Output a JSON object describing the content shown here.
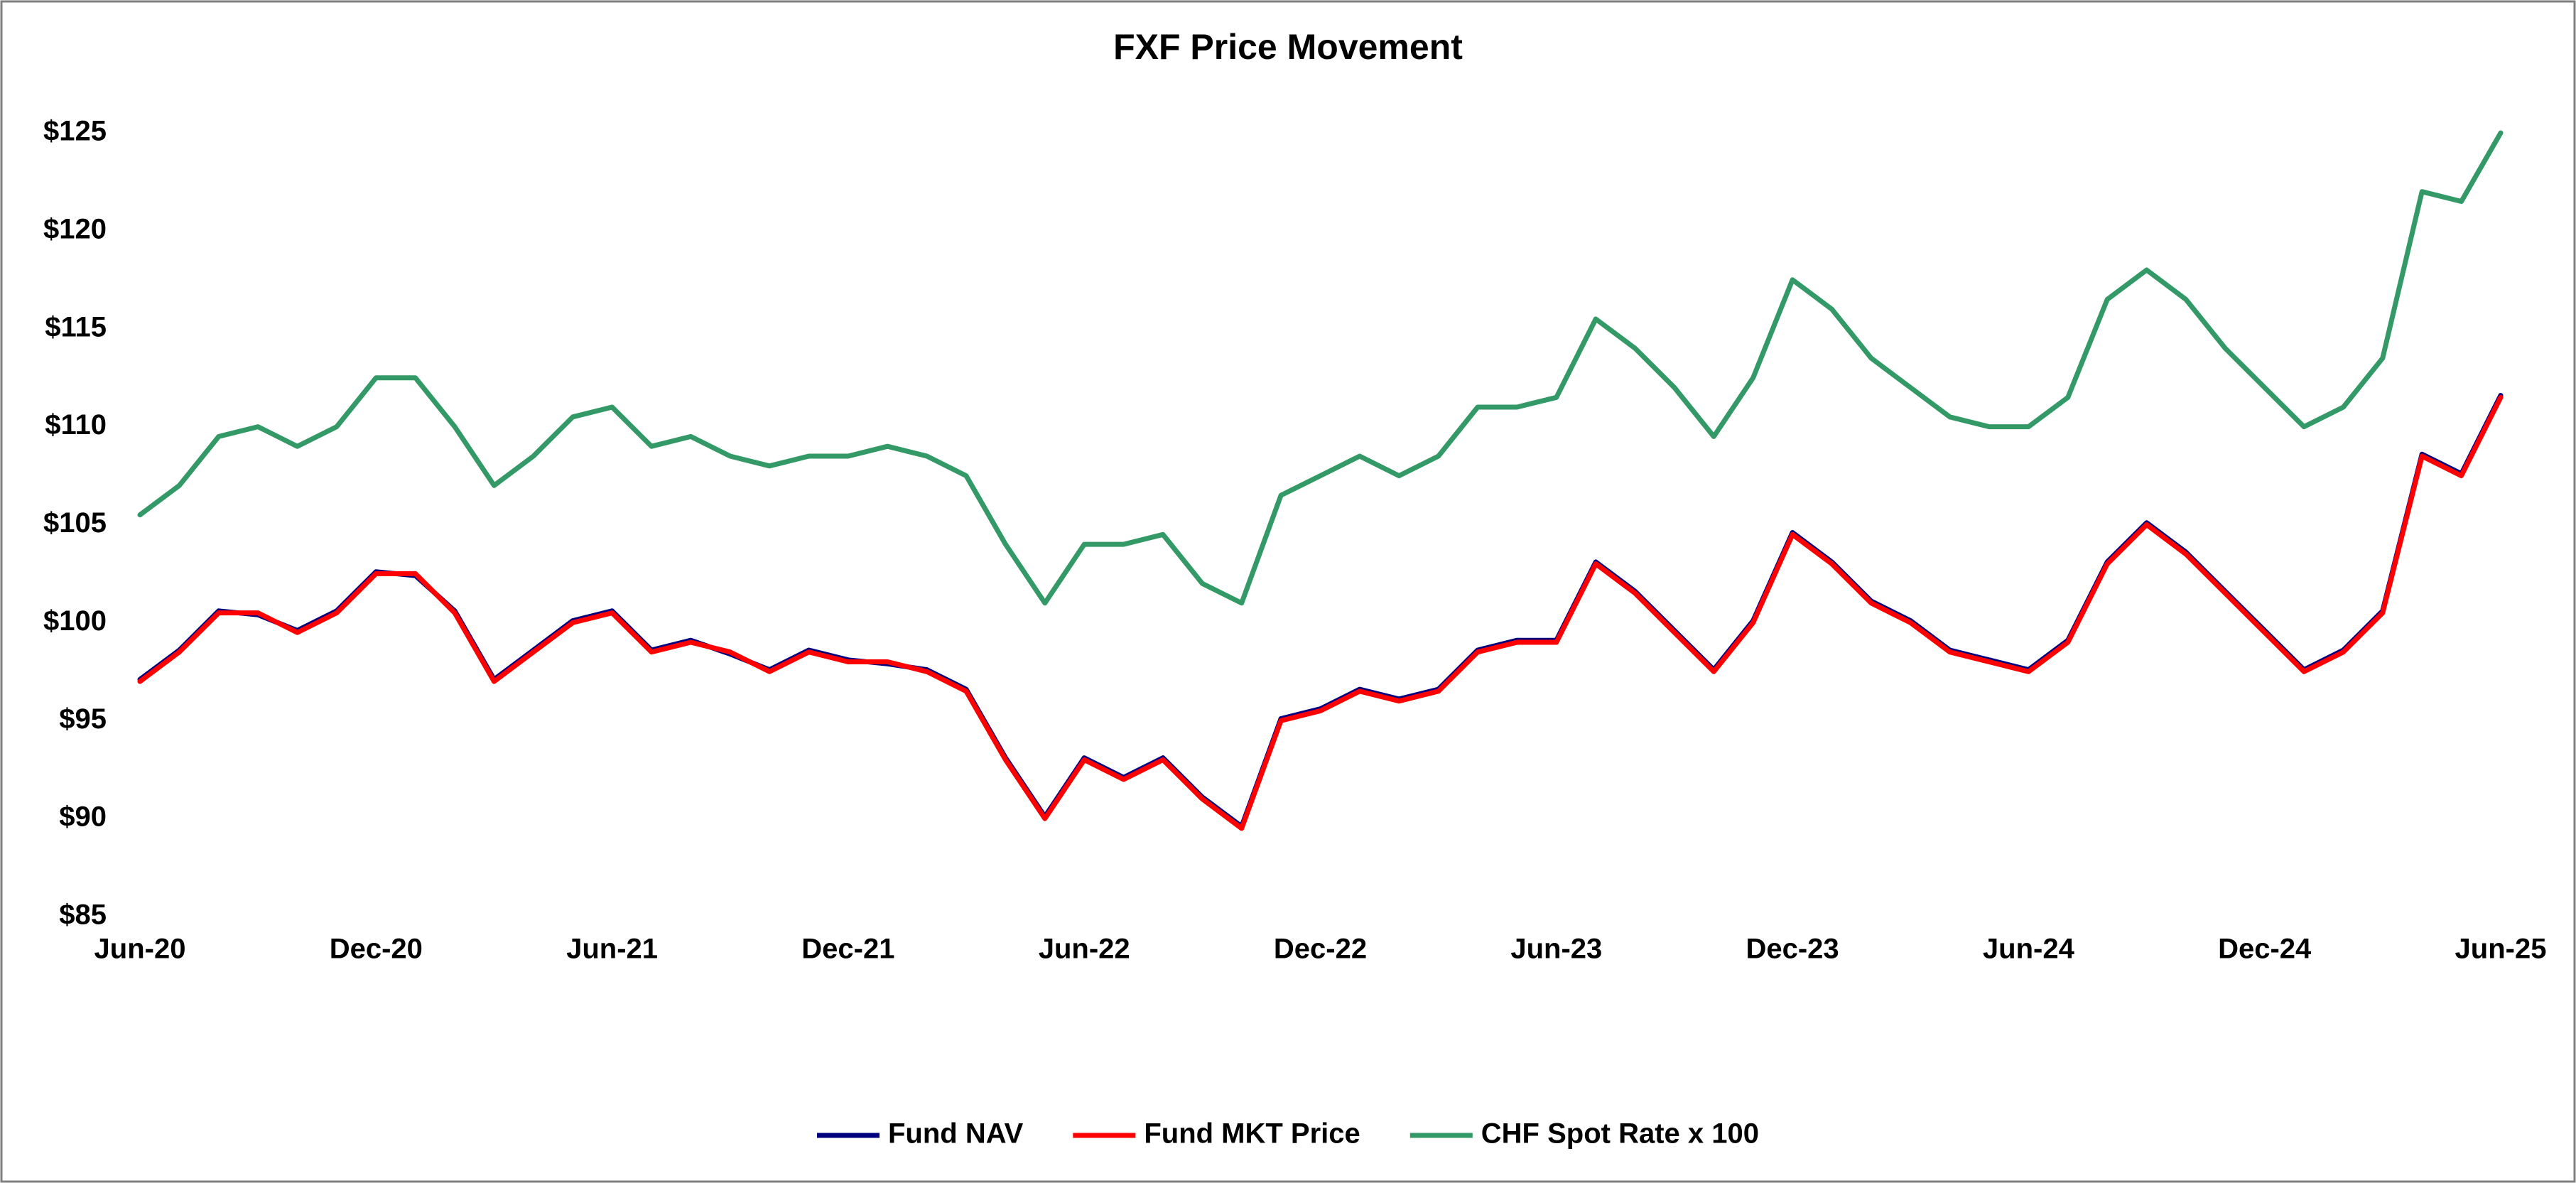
{
  "chart_data": {
    "type": "line",
    "title": "FXF Price Movement",
    "categories": [
      "Jun-20",
      null,
      null,
      null,
      null,
      null,
      "Dec-20",
      null,
      null,
      null,
      null,
      null,
      "Jun-21",
      null,
      null,
      null,
      null,
      null,
      "Dec-21",
      null,
      null,
      null,
      null,
      null,
      "Jun-22",
      null,
      null,
      null,
      null,
      null,
      "Dec-22",
      null,
      null,
      null,
      null,
      null,
      "Jun-23",
      null,
      null,
      null,
      null,
      null,
      "Dec-23",
      null,
      null,
      null,
      null,
      null,
      "Jun-24",
      null,
      null,
      null,
      null,
      null,
      "Dec-24",
      null,
      null,
      null,
      null,
      null,
      "Jun-25"
    ],
    "series": [
      {
        "name": "Fund NAV",
        "color": "#00007f",
        "values": [
          97.1,
          98.6,
          100.6,
          100.4,
          99.6,
          100.6,
          102.6,
          102.4,
          100.6,
          97.1,
          98.6,
          100.1,
          100.6,
          98.6,
          99.1,
          98.4,
          97.6,
          98.6,
          98.1,
          97.9,
          97.6,
          96.6,
          93.1,
          90.1,
          93.1,
          92.1,
          93.1,
          91.1,
          89.6,
          95.1,
          95.6,
          96.6,
          96.1,
          96.6,
          98.6,
          99.1,
          99.1,
          103.1,
          101.6,
          99.6,
          97.6,
          100.1,
          104.6,
          103.1,
          101.1,
          100.1,
          98.6,
          98.1,
          97.6,
          99.1,
          103.1,
          105.1,
          103.6,
          101.6,
          99.6,
          97.6,
          98.6,
          100.6,
          108.6,
          107.6,
          111.6
        ]
      },
      {
        "name": "Fund MKT Price",
        "color": "#ff0000",
        "values": [
          97,
          98.5,
          100.5,
          100.5,
          99.5,
          100.5,
          102.5,
          102.5,
          100.5,
          97,
          98.5,
          100,
          100.5,
          98.5,
          99,
          98.5,
          97.5,
          98.5,
          98,
          98,
          97.5,
          96.5,
          93,
          90,
          93,
          92,
          93,
          91,
          89.5,
          95,
          95.5,
          96.5,
          96,
          96.5,
          98.5,
          99,
          99,
          103,
          101.5,
          99.5,
          97.5,
          100,
          104.5,
          103,
          101,
          100,
          98.5,
          98,
          97.5,
          99,
          103,
          105,
          103.5,
          101.5,
          99.5,
          97.5,
          98.5,
          100.5,
          108.5,
          107.5,
          111.5
        ]
      },
      {
        "name": "CHF Spot Rate x 100",
        "color": "#339966",
        "values": [
          105.5,
          107,
          109.5,
          110,
          109,
          110,
          112.5,
          112.5,
          110,
          107,
          108.5,
          110.5,
          111,
          109,
          109.5,
          108.5,
          108,
          108.5,
          108.5,
          109,
          108.5,
          107.5,
          104,
          101,
          104,
          104,
          104.5,
          102,
          101,
          106.5,
          107.5,
          108.5,
          107.5,
          108.5,
          111,
          111,
          111.5,
          115.5,
          114,
          112,
          109.5,
          112.5,
          117.5,
          116,
          113.5,
          112,
          110.5,
          110,
          110,
          111.5,
          116.5,
          118,
          116.5,
          114,
          112,
          110,
          111,
          113.5,
          122,
          121.5,
          125
        ]
      }
    ],
    "ylim": [
      85,
      125
    ],
    "yticks": [
      {
        "value": 85,
        "label": "$85"
      },
      {
        "value": 90,
        "label": "$90"
      },
      {
        "value": 95,
        "label": "$95"
      },
      {
        "value": 100,
        "label": "$100"
      },
      {
        "value": 105,
        "label": "$105"
      },
      {
        "value": 110,
        "label": "$110"
      },
      {
        "value": 115,
        "label": "$115"
      },
      {
        "value": 120,
        "label": "$120"
      },
      {
        "value": 125,
        "label": "$125"
      }
    ],
    "grid": false,
    "legend": "bottom"
  }
}
